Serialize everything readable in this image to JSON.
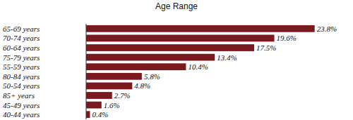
{
  "chart_data": {
    "type": "bar",
    "title": "Age Range",
    "orientation": "horizontal",
    "categories": [
      "65-69 years",
      "70-74 years",
      "60-64 years",
      "75-79 years",
      "55-59 years",
      "80-84 years",
      "50-54 years",
      "85+ years",
      "45-49 years",
      "40-44 years"
    ],
    "values": [
      23.8,
      19.6,
      17.5,
      13.4,
      10.4,
      5.8,
      4.8,
      2.7,
      1.6,
      0.4
    ],
    "value_labels": [
      "23.8%",
      "19.6%",
      "17.5%",
      "13.4%",
      "10.4%",
      "5.8%",
      "4.8%",
      "2.7%",
      "1.6%",
      "0.4%"
    ],
    "color": "#7b1a1e",
    "xlim": [
      0,
      25
    ],
    "data_labels": true,
    "tick_labels": "y",
    "grid": false
  }
}
